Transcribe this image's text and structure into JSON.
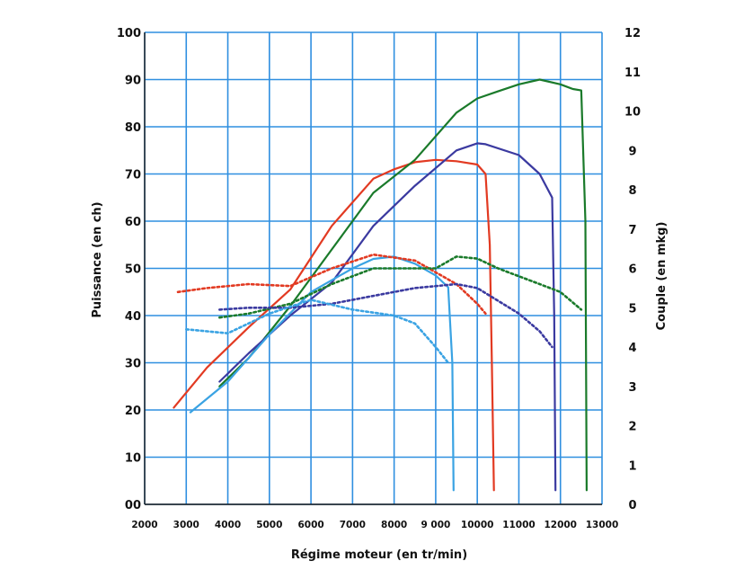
{
  "chart_data": {
    "type": "line",
    "title": "",
    "xlabel": "Régime moteur (en tr/min)",
    "ylabel": "Puissance (en ch)",
    "y2label": "Couple (en mkg)",
    "xlim": [
      2000,
      13000
    ],
    "ylim": [
      0,
      100
    ],
    "y2lim": [
      0,
      12
    ],
    "grid": true,
    "grid_color": "#2f8fe0",
    "x_tick_labels": [
      "2000",
      "3000",
      "4000",
      "5000",
      "6000",
      "7000",
      "8000",
      "9 000",
      "10000",
      "11000",
      "12000",
      "13000"
    ],
    "y_tick_labels": [
      "00",
      "10",
      "20",
      "30",
      "40",
      "50",
      "60",
      "70",
      "80",
      "90",
      "100"
    ],
    "y2_tick_labels": [
      "0",
      "1",
      "2",
      "3",
      "4",
      "5",
      "6",
      "7",
      "8",
      "9",
      "10",
      "11",
      "12"
    ],
    "series": [
      {
        "color": "#e23a22",
        "style": "solid",
        "axis": "left",
        "x": [
          2700,
          3500,
          4500,
          5500,
          6500,
          7500,
          8000,
          8500,
          9000,
          9500,
          10000,
          10200,
          10300,
          10350,
          10400
        ],
        "y": [
          20.5,
          29,
          37.5,
          45.5,
          59,
          69,
          71,
          72.5,
          73,
          72.7,
          72,
          70,
          55,
          30,
          3
        ]
      },
      {
        "color": "#1a7a2a",
        "style": "solid",
        "axis": "left",
        "x": [
          3800,
          4500,
          5500,
          6500,
          7500,
          8500,
          9500,
          10000,
          10500,
          11000,
          11500,
          12000,
          12300,
          12500,
          12600,
          12630
        ],
        "y": [
          25,
          31,
          42,
          54,
          66,
          73,
          83,
          86,
          87.5,
          89,
          90,
          89,
          88,
          87.7,
          60,
          3
        ]
      },
      {
        "color": "#3b3aa0",
        "style": "solid",
        "axis": "left",
        "x": [
          3800,
          4500,
          5500,
          6500,
          7500,
          8500,
          9500,
          10000,
          10200,
          11000,
          11500,
          11800,
          11850,
          11880
        ],
        "y": [
          26,
          32,
          40,
          47,
          59,
          67.5,
          75,
          76.5,
          76.3,
          74,
          70,
          65,
          40,
          3
        ]
      },
      {
        "color": "#3aa3e3",
        "style": "solid",
        "axis": "left",
        "x": [
          3100,
          4000,
          5000,
          6000,
          7000,
          7500,
          8000,
          8500,
          9000,
          9300,
          9400,
          9430
        ],
        "y": [
          19.5,
          26,
          36,
          45,
          50,
          52,
          52.5,
          51,
          48.5,
          46,
          30,
          3
        ]
      },
      {
        "color": "#e23a22",
        "style": "dotted",
        "axis": "right",
        "x": [
          2800,
          3500,
          4500,
          5500,
          6500,
          7500,
          8500,
          9500,
          10000,
          10200
        ],
        "y": [
          5.4,
          5.5,
          5.6,
          5.55,
          6.0,
          6.35,
          6.2,
          5.6,
          5.1,
          4.85
        ]
      },
      {
        "color": "#1a7a2a",
        "style": "dotted",
        "axis": "right",
        "x": [
          3800,
          4500,
          5500,
          6500,
          7500,
          8500,
          9000,
          9500,
          10000,
          10500,
          11000,
          11500,
          12000,
          12500
        ],
        "y": [
          4.75,
          4.85,
          5.1,
          5.6,
          6.0,
          6.0,
          6.0,
          6.3,
          6.25,
          6.0,
          5.8,
          5.6,
          5.4,
          4.95
        ]
      },
      {
        "color": "#3b3aa0",
        "style": "dotted",
        "axis": "right",
        "x": [
          3800,
          4500,
          5500,
          6500,
          7500,
          8500,
          9500,
          10000,
          11000,
          11500,
          11800
        ],
        "y": [
          4.95,
          5.0,
          5.0,
          5.1,
          5.3,
          5.5,
          5.6,
          5.5,
          4.85,
          4.4,
          4.0
        ]
      },
      {
        "color": "#3aa3e3",
        "style": "dotted",
        "axis": "right",
        "x": [
          3000,
          4000,
          5000,
          6000,
          7000,
          8000,
          8500,
          9000,
          9300
        ],
        "y": [
          4.45,
          4.35,
          4.85,
          5.2,
          4.95,
          4.8,
          4.6,
          4.0,
          3.6
        ]
      }
    ]
  }
}
